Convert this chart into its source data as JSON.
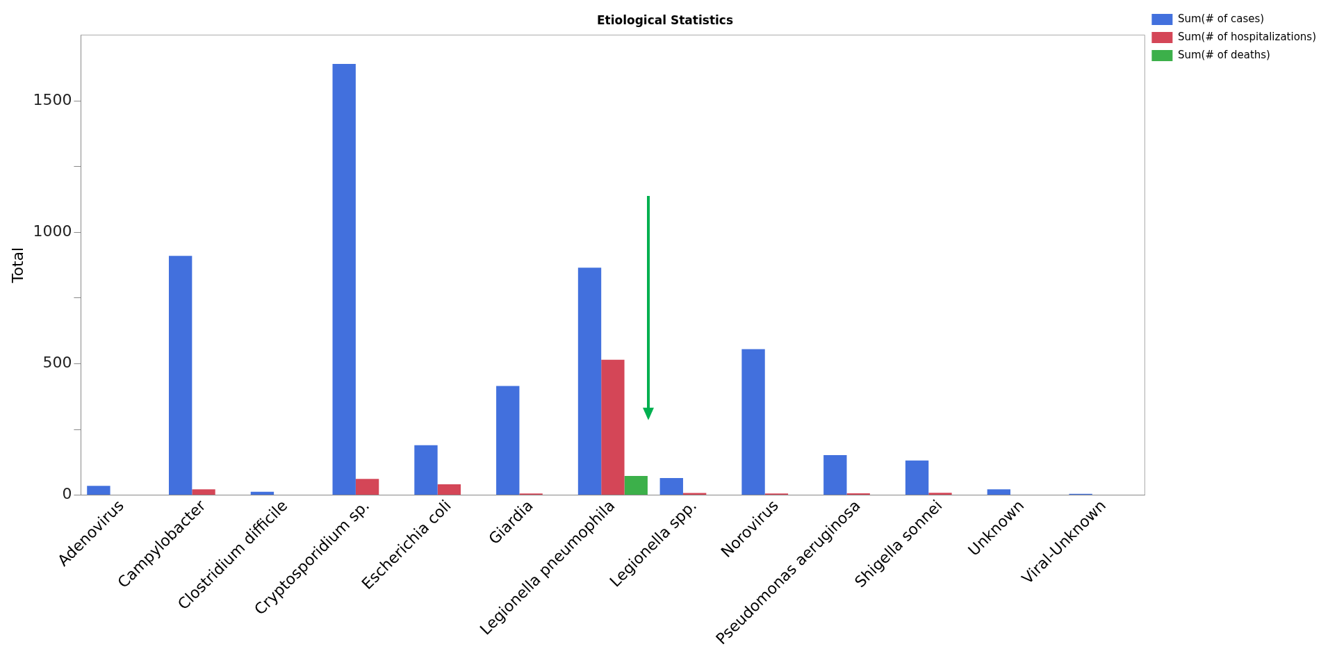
{
  "chart_data": {
    "type": "bar",
    "title": "Etiological Statistics",
    "ylabel": "Total",
    "categories": [
      "Adenovirus",
      "Campylobacter",
      "Clostridium difficile",
      "Cryptosporidium sp.",
      "Escherichia coli",
      "Giardia",
      "Legionella pneumophila",
      "Legionella spp.",
      "Norovirus",
      "Pseudomonas aeruginosa",
      "Shigella sonnei",
      "Unknown",
      "Viral-Unknown"
    ],
    "series": [
      {
        "name": "Sum(# of cases)",
        "color": "#4270dd",
        "values": [
          35,
          910,
          13,
          1640,
          190,
          415,
          865,
          65,
          555,
          152,
          132,
          22,
          5
        ]
      },
      {
        "name": "Sum(# of hospitalizations)",
        "color": "#d44657",
        "values": [
          null,
          22,
          null,
          62,
          41,
          6,
          515,
          8,
          6,
          7,
          9,
          null,
          null
        ]
      },
      {
        "name": "Sum(# of deaths)",
        "color": "#3cb04a",
        "values": [
          null,
          null,
          null,
          null,
          null,
          null,
          73,
          null,
          null,
          null,
          null,
          null,
          null
        ]
      }
    ],
    "ylim": [
      0,
      1750
    ],
    "yticks": [
      0,
      {
        "value": 250,
        "label": null
      },
      500,
      {
        "value": 750,
        "label": null
      },
      1000,
      {
        "value": 1250,
        "label": null
      },
      1500
    ],
    "grid": false,
    "legend": "top right"
  }
}
